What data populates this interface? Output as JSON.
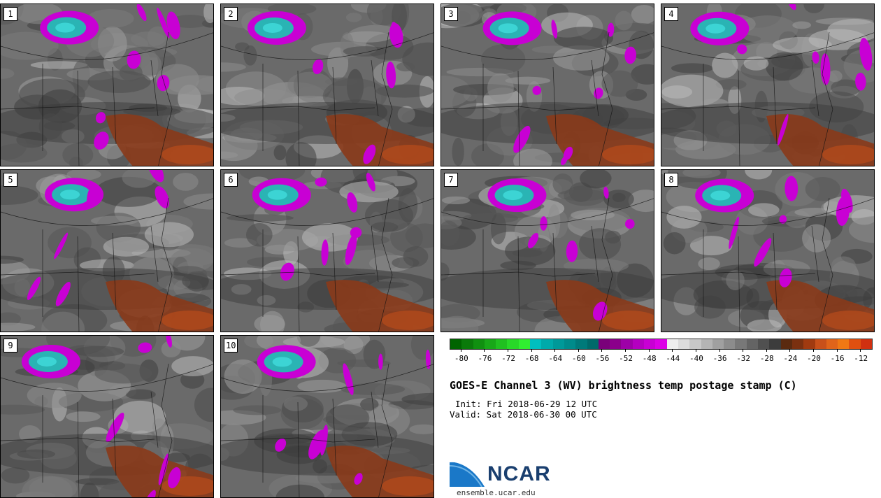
{
  "panels": [
    {
      "label": "1"
    },
    {
      "label": "2"
    },
    {
      "label": "3"
    },
    {
      "label": "4"
    },
    {
      "label": "5"
    },
    {
      "label": "6"
    },
    {
      "label": "7"
    },
    {
      "label": "8"
    },
    {
      "label": "9"
    },
    {
      "label": "10"
    }
  ],
  "colorbar": {
    "colors": [
      "#006400",
      "#0a7a0a",
      "#109010",
      "#18a818",
      "#20c020",
      "#28d828",
      "#30ee30",
      "#00bfbf",
      "#00aaaa",
      "#009999",
      "#008b8b",
      "#007a7a",
      "#006a6a",
      "#7a007a",
      "#8b008b",
      "#9e00a8",
      "#b400c0",
      "#c800d4",
      "#dc00e6",
      "#eeeeee",
      "#dcdcdc",
      "#c8c8c8",
      "#b4b4b4",
      "#a0a0a0",
      "#8c8c8c",
      "#787878",
      "#646464",
      "#505050",
      "#3c3c3c",
      "#5a2a10",
      "#7a3010",
      "#a03a10",
      "#c8501a",
      "#e0641a",
      "#f07814",
      "#e05010",
      "#d03010"
    ],
    "tick_labels": [
      "-80",
      "-76",
      "-72",
      "-68",
      "-64",
      "-60",
      "-56",
      "-52",
      "-48",
      "-44",
      "-40",
      "-36",
      "-32",
      "-28",
      "-24",
      "-20",
      "-16",
      "-12"
    ],
    "min": -82,
    "max": -10
  },
  "title": "GOES-E Channel 3 (WV) brightness temp postage stamp (C)",
  "init_text": "Init: Fri 2018-06-29 12 UTC",
  "valid_text": "Valid: Sat 2018-06-30 00 UTC",
  "logo": {
    "name": "NCAR",
    "url": "ensemble.ucar.edu"
  },
  "colors": {
    "magenta": "#c800d4",
    "cyan": "#2ab4b4",
    "rust": "#8a3a1a",
    "gray": "#6e6e6e"
  }
}
